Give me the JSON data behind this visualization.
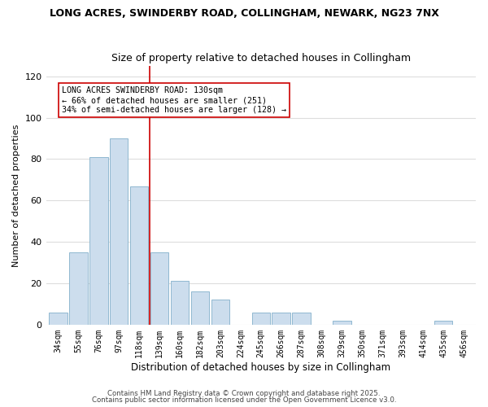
{
  "title1": "LONG ACRES, SWINDERBY ROAD, COLLINGHAM, NEWARK, NG23 7NX",
  "title2": "Size of property relative to detached houses in Collingham",
  "xlabel": "Distribution of detached houses by size in Collingham",
  "ylabel": "Number of detached properties",
  "bar_labels": [
    "34sqm",
    "55sqm",
    "76sqm",
    "97sqm",
    "118sqm",
    "139sqm",
    "160sqm",
    "182sqm",
    "203sqm",
    "224sqm",
    "245sqm",
    "266sqm",
    "287sqm",
    "308sqm",
    "329sqm",
    "350sqm",
    "371sqm",
    "393sqm",
    "414sqm",
    "435sqm",
    "456sqm"
  ],
  "bar_values": [
    6,
    35,
    81,
    90,
    67,
    35,
    21,
    16,
    12,
    0,
    6,
    6,
    6,
    0,
    2,
    0,
    0,
    0,
    0,
    2,
    0
  ],
  "bar_color": "#ccdded",
  "bar_edgecolor": "#90b8d0",
  "ylim": [
    0,
    125
  ],
  "yticks": [
    0,
    20,
    40,
    60,
    80,
    100,
    120
  ],
  "vline_color": "#cc0000",
  "annotation_title": "LONG ACRES SWINDERBY ROAD: 130sqm",
  "annotation_line2": "← 66% of detached houses are smaller (251)",
  "annotation_line3": "34% of semi-detached houses are larger (128) →",
  "footer1": "Contains HM Land Registry data © Crown copyright and database right 2025.",
  "footer2": "Contains public sector information licensed under the Open Government Licence v3.0.",
  "background_color": "#ffffff",
  "grid_color": "#dddddd"
}
